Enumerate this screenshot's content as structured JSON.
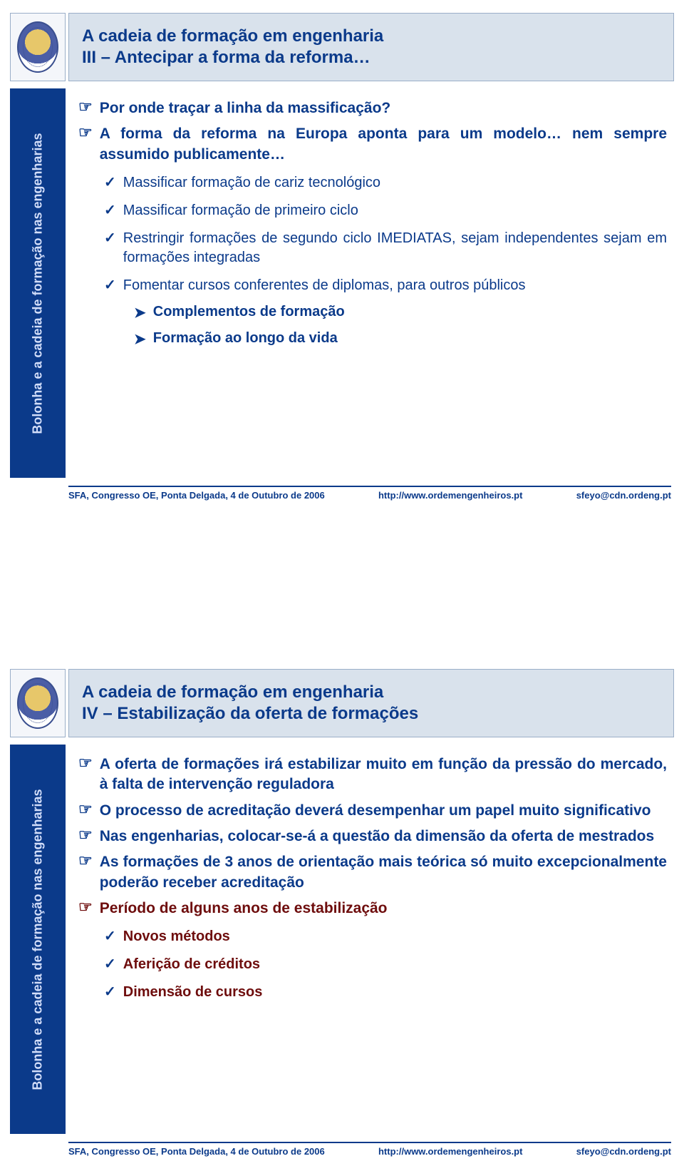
{
  "sidebar_label": "Bolonha e a cadeia de formação nas engenharias",
  "footer": {
    "left": "SFA, Congresso OE, Ponta Delgada, 4 de Outubro de 2006",
    "mid": "http://www.ordemengenheiros.pt",
    "right": "sfeyo@cdn.ordeng.pt"
  },
  "slide1": {
    "title1": "A cadeia de formação em engenharia",
    "title2": "III – Antecipar a forma da reforma…",
    "b1": "Por onde traçar a linha da massificação?",
    "b2": "A forma da reforma na Europa aponta para um modelo… nem sempre assumido publicamente…",
    "c1": "Massificar formação de cariz tecnológico",
    "c2": "Massificar formação de primeiro ciclo",
    "c3": "Restringir formações de segundo ciclo IMEDIATAS, sejam independentes sejam em formações integradas",
    "c4": "Fomentar cursos conferentes de diplomas, para outros públicos",
    "a1": "Complementos de formação",
    "a2": "Formação ao longo da vida"
  },
  "slide2": {
    "title1": "A cadeia de formação em engenharia",
    "title2": "IV – Estabilização da oferta de formações",
    "b1": "A oferta de formações irá estabilizar muito em função da pressão do mercado, à falta de intervenção reguladora",
    "b2": "O processo de acreditação deverá desempenhar um papel muito significativo",
    "b3": "Nas engenharias, colocar-se-á a questão da dimensão da oferta de mestrados",
    "b4": "As formações de 3 anos de orientação mais teórica só muito excepcionalmente poderão receber acreditação",
    "b5": "Período de alguns anos de estabilização",
    "c1": "Novos métodos",
    "c2": "Aferição de créditos",
    "c3": "Dimensão de cursos"
  },
  "colors": {
    "brand_blue": "#0b3a8a",
    "header_bg": "#d9e2ec",
    "dark_red": "#6e0d0d"
  }
}
